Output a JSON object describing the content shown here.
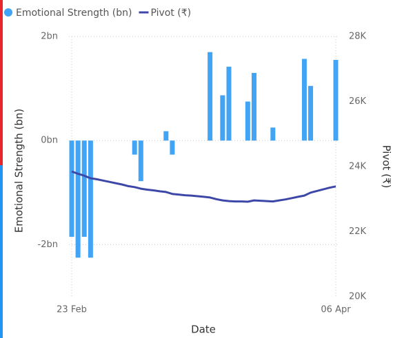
{
  "chart_data": {
    "type": "bar",
    "legend": "top-left",
    "categories": [
      "23 Feb",
      null,
      null,
      null,
      null,
      null,
      null,
      null,
      null,
      null,
      null,
      null,
      null,
      null,
      null,
      null,
      null,
      null,
      null,
      null,
      null,
      null,
      null,
      null,
      null,
      null,
      null,
      null,
      null,
      null,
      null,
      null,
      null,
      null,
      null,
      null,
      null,
      null,
      null,
      null,
      null,
      null,
      "06 Apr"
    ],
    "series": [
      {
        "name": "Emotional Strength (bn)",
        "type": "bar",
        "color": "#41a4f5",
        "values": [
          -1.85,
          -2.25,
          -1.85,
          -2.25,
          null,
          null,
          null,
          null,
          null,
          null,
          -0.27,
          -0.78,
          null,
          null,
          null,
          0.18,
          -0.27,
          null,
          null,
          null,
          null,
          null,
          1.7,
          null,
          0.87,
          1.42,
          null,
          null,
          0.75,
          1.3,
          null,
          null,
          0.25,
          null,
          null,
          null,
          null,
          1.57,
          1.05,
          null,
          null,
          null,
          1.55
        ]
      },
      {
        "name": "Pivot (₹)",
        "type": "line",
        "axis": "y2",
        "color": "#3d47a8",
        "values": [
          23850,
          23780,
          23720,
          23640,
          23610,
          23570,
          23530,
          23490,
          23450,
          23400,
          23370,
          23320,
          23290,
          23270,
          23240,
          23220,
          23160,
          23140,
          23120,
          23110,
          23090,
          23070,
          23050,
          23000,
          22960,
          22940,
          22930,
          22930,
          22920,
          22960,
          22950,
          22940,
          22930,
          22960,
          22990,
          23030,
          23070,
          23110,
          23200,
          23250,
          23300,
          23350,
          23390
        ]
      }
    ],
    "ylabel": "Emotional Strength (bn)",
    "y2label": "Pivot (₹)",
    "xlabel": "Date",
    "ylim": [
      -3,
      2
    ],
    "yticks": [
      {
        "value": 2,
        "label": "2bn"
      },
      {
        "value": 0,
        "label": "0bn"
      },
      {
        "value": -2,
        "label": "-2bn"
      }
    ],
    "y2lim": [
      20000,
      28000
    ],
    "y2ticks": [
      {
        "value": 28000,
        "label": "28K"
      },
      {
        "value": 26000,
        "label": "26K"
      },
      {
        "value": 24000,
        "label": "24K"
      },
      {
        "value": 22000,
        "label": "22K"
      },
      {
        "value": 20000,
        "label": "20K"
      }
    ],
    "grid": true
  }
}
